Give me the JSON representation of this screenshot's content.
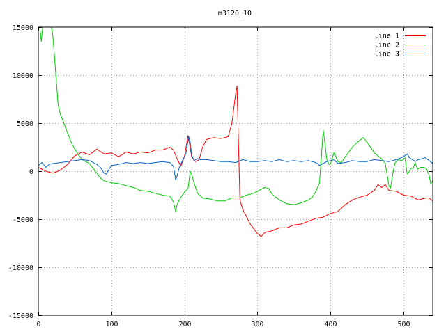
{
  "chart_data": {
    "type": "line",
    "title": "m3120_10",
    "xlabel": "",
    "ylabel": "",
    "xlim": [
      0,
      540
    ],
    "ylim": [
      -15000,
      15000
    ],
    "grid": true,
    "legend_position": "top-right",
    "x_ticks": [
      0,
      100,
      200,
      300,
      400,
      500
    ],
    "y_ticks": [
      -15000,
      -10000,
      -5000,
      0,
      5000,
      10000,
      15000
    ],
    "x_tick_labels": [
      "0",
      "100",
      "200",
      "300",
      "400",
      "500"
    ],
    "y_tick_labels": [
      "−15000",
      "−10000",
      "−5000",
      "0",
      "5000",
      "10000",
      "15000"
    ],
    "series": [
      {
        "name": "line 1",
        "color": "#ff0000",
        "points": [
          [
            0,
            400
          ],
          [
            10,
            0
          ],
          [
            20,
            -200
          ],
          [
            30,
            100
          ],
          [
            40,
            700
          ],
          [
            50,
            1600
          ],
          [
            60,
            2000
          ],
          [
            70,
            1700
          ],
          [
            80,
            2300
          ],
          [
            90,
            1800
          ],
          [
            100,
            1900
          ],
          [
            110,
            1500
          ],
          [
            120,
            2000
          ],
          [
            130,
            1800
          ],
          [
            140,
            2000
          ],
          [
            150,
            1900
          ],
          [
            160,
            2200
          ],
          [
            170,
            2200
          ],
          [
            180,
            2500
          ],
          [
            185,
            2200
          ],
          [
            190,
            1300
          ],
          [
            195,
            500
          ],
          [
            200,
            1500
          ],
          [
            205,
            3700
          ],
          [
            210,
            1500
          ],
          [
            215,
            1000
          ],
          [
            220,
            1200
          ],
          [
            225,
            2500
          ],
          [
            230,
            3300
          ],
          [
            240,
            3500
          ],
          [
            250,
            3400
          ],
          [
            260,
            3600
          ],
          [
            265,
            5000
          ],
          [
            270,
            8000
          ],
          [
            272,
            8900
          ],
          [
            274,
            3000
          ],
          [
            276,
            -3000
          ],
          [
            280,
            -4000
          ],
          [
            290,
            -5500
          ],
          [
            300,
            -6500
          ],
          [
            305,
            -6800
          ],
          [
            310,
            -6400
          ],
          [
            320,
            -6200
          ],
          [
            330,
            -5900
          ],
          [
            340,
            -5900
          ],
          [
            350,
            -5600
          ],
          [
            360,
            -5500
          ],
          [
            370,
            -5200
          ],
          [
            380,
            -4900
          ],
          [
            390,
            -4800
          ],
          [
            400,
            -4400
          ],
          [
            410,
            -4200
          ],
          [
            420,
            -3500
          ],
          [
            430,
            -3000
          ],
          [
            440,
            -2700
          ],
          [
            450,
            -2500
          ],
          [
            460,
            -2000
          ],
          [
            465,
            -1400
          ],
          [
            470,
            -1700
          ],
          [
            475,
            -1400
          ],
          [
            480,
            -2000
          ],
          [
            490,
            -2100
          ],
          [
            500,
            -2500
          ],
          [
            510,
            -2600
          ],
          [
            520,
            -3000
          ],
          [
            530,
            -2800
          ],
          [
            535,
            -2800
          ],
          [
            540,
            -3100
          ]
        ]
      },
      {
        "name": "line 2",
        "color": "#00cc00",
        "points": [
          [
            0,
            15000
          ],
          [
            2,
            15000
          ],
          [
            4,
            13500
          ],
          [
            6,
            15000
          ],
          [
            8,
            15000
          ],
          [
            12,
            15000
          ],
          [
            18,
            15000
          ],
          [
            20,
            14000
          ],
          [
            22,
            12000
          ],
          [
            25,
            9000
          ],
          [
            27,
            7000
          ],
          [
            30,
            6000
          ],
          [
            35,
            5000
          ],
          [
            40,
            4000
          ],
          [
            45,
            3000
          ],
          [
            50,
            2300
          ],
          [
            55,
            1700
          ],
          [
            60,
            1200
          ],
          [
            65,
            1000
          ],
          [
            70,
            800
          ],
          [
            75,
            300
          ],
          [
            80,
            -200
          ],
          [
            85,
            -700
          ],
          [
            90,
            -1000
          ],
          [
            95,
            -1100
          ],
          [
            100,
            -1200
          ],
          [
            110,
            -1300
          ],
          [
            120,
            -1500
          ],
          [
            130,
            -1700
          ],
          [
            140,
            -2000
          ],
          [
            150,
            -2100
          ],
          [
            160,
            -2300
          ],
          [
            170,
            -2500
          ],
          [
            180,
            -2600
          ],
          [
            185,
            -3200
          ],
          [
            188,
            -4200
          ],
          [
            190,
            -3500
          ],
          [
            193,
            -3000
          ],
          [
            197,
            -2500
          ],
          [
            200,
            -2200
          ],
          [
            205,
            -1800
          ],
          [
            208,
            0
          ],
          [
            210,
            -300
          ],
          [
            213,
            -1200
          ],
          [
            218,
            -2300
          ],
          [
            225,
            -2800
          ],
          [
            235,
            -2900
          ],
          [
            245,
            -3100
          ],
          [
            255,
            -3100
          ],
          [
            265,
            -2800
          ],
          [
            275,
            -2800
          ],
          [
            285,
            -2500
          ],
          [
            295,
            -2300
          ],
          [
            300,
            -2100
          ],
          [
            305,
            -1900
          ],
          [
            310,
            -1700
          ],
          [
            315,
            -1800
          ],
          [
            320,
            -2400
          ],
          [
            330,
            -3000
          ],
          [
            340,
            -3400
          ],
          [
            350,
            -3500
          ],
          [
            360,
            -3300
          ],
          [
            370,
            -3000
          ],
          [
            375,
            -2700
          ],
          [
            380,
            -2100
          ],
          [
            385,
            -1200
          ],
          [
            388,
            2000
          ],
          [
            390,
            4300
          ],
          [
            393,
            2500
          ],
          [
            395,
            1200
          ],
          [
            398,
            700
          ],
          [
            400,
            800
          ],
          [
            405,
            2000
          ],
          [
            410,
            1000
          ],
          [
            415,
            900
          ],
          [
            420,
            1500
          ],
          [
            425,
            2000
          ],
          [
            430,
            2500
          ],
          [
            435,
            2900
          ],
          [
            440,
            3200
          ],
          [
            445,
            3500
          ],
          [
            450,
            3000
          ],
          [
            455,
            2500
          ],
          [
            460,
            1900
          ],
          [
            465,
            1600
          ],
          [
            470,
            1300
          ],
          [
            475,
            800
          ],
          [
            480,
            -1500
          ],
          [
            482,
            -1800
          ],
          [
            485,
            -400
          ],
          [
            488,
            800
          ],
          [
            492,
            1200
          ],
          [
            498,
            1100
          ],
          [
            502,
            1400
          ],
          [
            505,
            -300
          ],
          [
            508,
            0
          ],
          [
            510,
            300
          ],
          [
            513,
            300
          ],
          [
            516,
            900
          ],
          [
            519,
            200
          ],
          [
            523,
            400
          ],
          [
            527,
            400
          ],
          [
            531,
            300
          ],
          [
            535,
            -400
          ],
          [
            537,
            -1300
          ],
          [
            540,
            -1000
          ]
        ]
      },
      {
        "name": "line 3",
        "color": "#0066cc",
        "points": [
          [
            0,
            600
          ],
          [
            5,
            900
          ],
          [
            10,
            400
          ],
          [
            15,
            700
          ],
          [
            20,
            800
          ],
          [
            30,
            900
          ],
          [
            40,
            1000
          ],
          [
            50,
            1100
          ],
          [
            60,
            1200
          ],
          [
            70,
            1100
          ],
          [
            75,
            900
          ],
          [
            80,
            700
          ],
          [
            85,
            400
          ],
          [
            90,
            -200
          ],
          [
            93,
            -300
          ],
          [
            96,
            100
          ],
          [
            100,
            600
          ],
          [
            110,
            700
          ],
          [
            120,
            900
          ],
          [
            130,
            800
          ],
          [
            140,
            900
          ],
          [
            150,
            800
          ],
          [
            160,
            900
          ],
          [
            170,
            1000
          ],
          [
            180,
            900
          ],
          [
            185,
            500
          ],
          [
            188,
            -900
          ],
          [
            190,
            -500
          ],
          [
            193,
            400
          ],
          [
            198,
            1200
          ],
          [
            202,
            1800
          ],
          [
            206,
            3600
          ],
          [
            208,
            3000
          ],
          [
            210,
            1700
          ],
          [
            213,
            1100
          ],
          [
            218,
            1300
          ],
          [
            222,
            1200
          ],
          [
            230,
            1200
          ],
          [
            240,
            1100
          ],
          [
            250,
            1000
          ],
          [
            260,
            1000
          ],
          [
            270,
            900
          ],
          [
            280,
            1200
          ],
          [
            290,
            1000
          ],
          [
            300,
            1000
          ],
          [
            310,
            1100
          ],
          [
            320,
            1000
          ],
          [
            330,
            1200
          ],
          [
            340,
            1000
          ],
          [
            350,
            1100
          ],
          [
            360,
            1000
          ],
          [
            370,
            1100
          ],
          [
            380,
            900
          ],
          [
            385,
            600
          ],
          [
            390,
            800
          ],
          [
            395,
            1000
          ],
          [
            400,
            1100
          ],
          [
            405,
            1200
          ],
          [
            410,
            800
          ],
          [
            420,
            900
          ],
          [
            430,
            1100
          ],
          [
            440,
            1000
          ],
          [
            450,
            1000
          ],
          [
            460,
            1200
          ],
          [
            470,
            1100
          ],
          [
            480,
            1000
          ],
          [
            490,
            1200
          ],
          [
            500,
            1500
          ],
          [
            505,
            1800
          ],
          [
            508,
            1400
          ],
          [
            512,
            1200
          ],
          [
            516,
            1000
          ],
          [
            520,
            1200
          ],
          [
            525,
            1300
          ],
          [
            530,
            1400
          ],
          [
            535,
            1100
          ],
          [
            540,
            800
          ]
        ]
      }
    ]
  }
}
